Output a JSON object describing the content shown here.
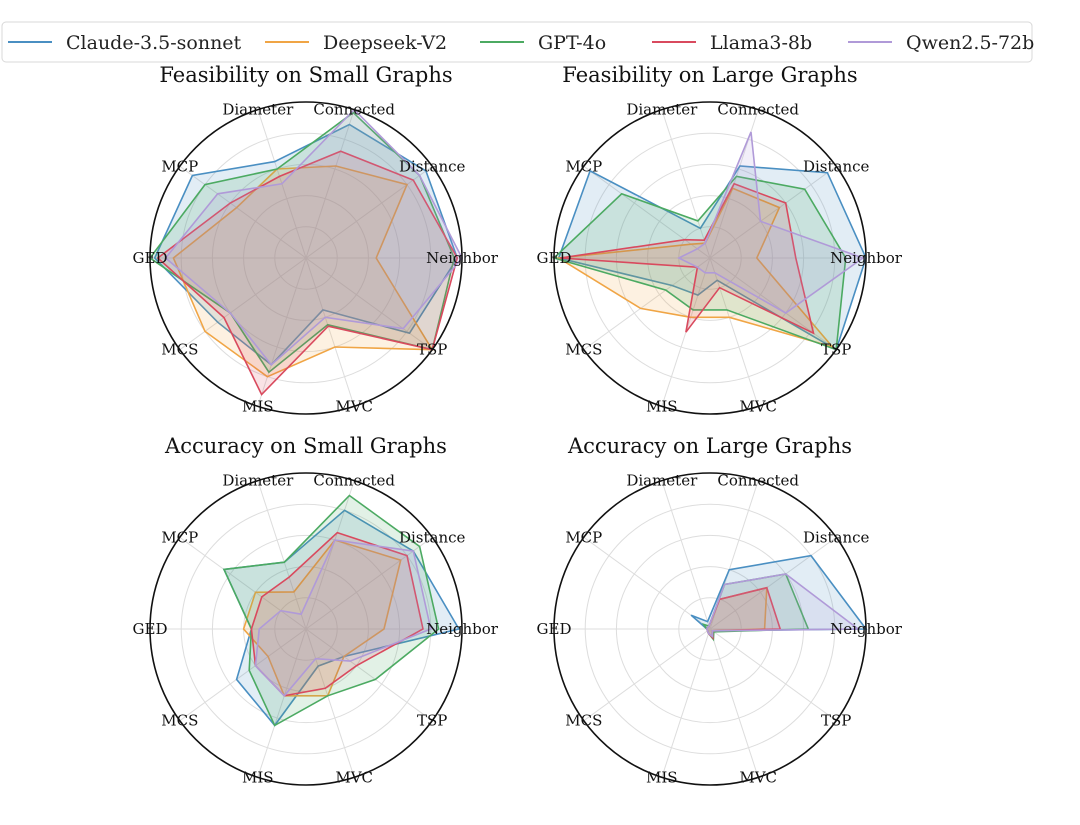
{
  "legend": {
    "entries": [
      {
        "name": "Claude-3.5-sonnet",
        "color": "#4a8fc2"
      },
      {
        "name": "Deepseek-V2",
        "color": "#f0a545"
      },
      {
        "name": "GPT-4o",
        "color": "#4caa62"
      },
      {
        "name": "Llama3-8b",
        "color": "#d94a5e"
      },
      {
        "name": "Qwen2.5-72b",
        "color": "#b09ad8"
      }
    ]
  },
  "chart_data": [
    {
      "type": "radar",
      "title": "Feasibility on Small Graphs",
      "axes": [
        "Neighbor",
        "Distance",
        "Connected",
        "Diameter",
        "MCP",
        "GED",
        "MCS",
        "MIS",
        "MVC",
        "TSP"
      ],
      "rlim": [
        0,
        1
      ],
      "grid": true,
      "series": [
        {
          "name": "Claude-3.5-sonnet",
          "values": [
            0.97,
            0.95,
            0.9,
            0.65,
            0.9,
            0.97,
            0.7,
            0.72,
            0.35,
            0.82
          ]
        },
        {
          "name": "Deepseek-V2",
          "values": [
            0.45,
            0.8,
            0.62,
            0.6,
            0.55,
            0.85,
            0.8,
            0.8,
            0.6,
            1.0
          ]
        },
        {
          "name": "GPT-4o",
          "values": [
            0.95,
            0.9,
            0.98,
            0.6,
            0.8,
            1.0,
            0.6,
            0.77,
            0.45,
            1.0
          ]
        },
        {
          "name": "Llama3-8b",
          "values": [
            0.97,
            0.85,
            0.72,
            0.55,
            0.6,
            0.95,
            0.65,
            0.92,
            0.46,
            1.0
          ]
        },
        {
          "name": "Qwen2.5-72b",
          "values": [
            1.0,
            0.9,
            1.0,
            0.5,
            0.7,
            0.9,
            0.6,
            0.72,
            0.4,
            0.77
          ]
        }
      ]
    },
    {
      "type": "radar",
      "title": "Feasibility on Large Graphs",
      "axes": [
        "Neighbor",
        "Distance",
        "Connected",
        "Diameter",
        "MCP",
        "GED",
        "MCS",
        "MIS",
        "MVC",
        "TSP"
      ],
      "rlim": [
        0,
        1
      ],
      "grid": true,
      "series": [
        {
          "name": "Claude-3.5-sonnet",
          "values": [
            1.0,
            0.93,
            0.62,
            0.2,
            0.95,
            0.97,
            0.3,
            0.25,
            0.15,
            1.0
          ]
        },
        {
          "name": "Deepseek-V2",
          "values": [
            0.3,
            0.55,
            0.47,
            0.1,
            0.15,
            0.97,
            0.55,
            0.4,
            0.4,
            0.97
          ]
        },
        {
          "name": "GPT-4o",
          "values": [
            0.87,
            0.75,
            0.55,
            0.25,
            0.7,
            1.0,
            0.35,
            0.35,
            0.35,
            1.0
          ]
        },
        {
          "name": "Llama3-8b",
          "values": [
            0.55,
            0.6,
            0.5,
            0.12,
            0.2,
            0.96,
            0.1,
            0.5,
            0.2,
            0.82
          ]
        },
        {
          "name": "Qwen2.5-72b",
          "values": [
            0.98,
            0.4,
            0.85,
            0.1,
            0.1,
            0.2,
            0.1,
            0.1,
            0.1,
            0.6
          ]
        }
      ]
    },
    {
      "type": "radar",
      "title": "Accuracy on Small Graphs",
      "axes": [
        "Neighbor",
        "Distance",
        "Connected",
        "Diameter",
        "MCP",
        "GED",
        "MCS",
        "MIS",
        "MVC",
        "TSP"
      ],
      "rlim": [
        0,
        1
      ],
      "grid": true,
      "series": [
        {
          "name": "Claude-3.5-sonnet",
          "values": [
            0.98,
            0.85,
            0.8,
            0.45,
            0.65,
            0.35,
            0.55,
            0.65,
            0.25,
            0.3
          ]
        },
        {
          "name": "Deepseek-V2",
          "values": [
            0.5,
            0.75,
            0.6,
            0.25,
            0.4,
            0.4,
            0.3,
            0.45,
            0.45,
            0.3
          ]
        },
        {
          "name": "GPT-4o",
          "values": [
            0.85,
            0.9,
            0.9,
            0.45,
            0.65,
            0.35,
            0.45,
            0.65,
            0.45,
            0.55
          ]
        },
        {
          "name": "Llama3-8b",
          "values": [
            0.75,
            0.8,
            0.65,
            0.35,
            0.35,
            0.35,
            0.4,
            0.45,
            0.4,
            0.4
          ]
        },
        {
          "name": "Qwen2.5-72b",
          "values": [
            0.8,
            0.85,
            0.6,
            0.1,
            0.2,
            0.3,
            0.4,
            0.45,
            0.2,
            0.35
          ]
        }
      ]
    },
    {
      "type": "radar",
      "title": "Accuracy on Large Graphs",
      "axes": [
        "Neighbor",
        "Distance",
        "Connected",
        "Diameter",
        "MCP",
        "GED",
        "MCS",
        "MIS",
        "MVC",
        "TSP"
      ],
      "rlim": [
        0,
        1
      ],
      "grid": true,
      "series": [
        {
          "name": "Claude-3.5-sonnet",
          "values": [
            1.0,
            0.8,
            0.4,
            0.05,
            0.15,
            0.02,
            0.02,
            0.03,
            0.05,
            0.02
          ]
        },
        {
          "name": "Deepseek-V2",
          "values": [
            0.35,
            0.45,
            0.2,
            0.02,
            0.02,
            0.02,
            0.02,
            0.03,
            0.05,
            0.02
          ]
        },
        {
          "name": "GPT-4o",
          "values": [
            0.63,
            0.6,
            0.3,
            0.02,
            0.05,
            0.02,
            0.02,
            0.03,
            0.07,
            0.03
          ]
        },
        {
          "name": "Llama3-8b",
          "values": [
            0.45,
            0.45,
            0.2,
            0.02,
            0.02,
            0.02,
            0.02,
            0.03,
            0.06,
            0.02
          ]
        },
        {
          "name": "Qwen2.5-72b",
          "values": [
            0.95,
            0.6,
            0.3,
            0.02,
            0.02,
            0.02,
            0.02,
            0.03,
            0.05,
            0.02
          ]
        }
      ]
    }
  ]
}
